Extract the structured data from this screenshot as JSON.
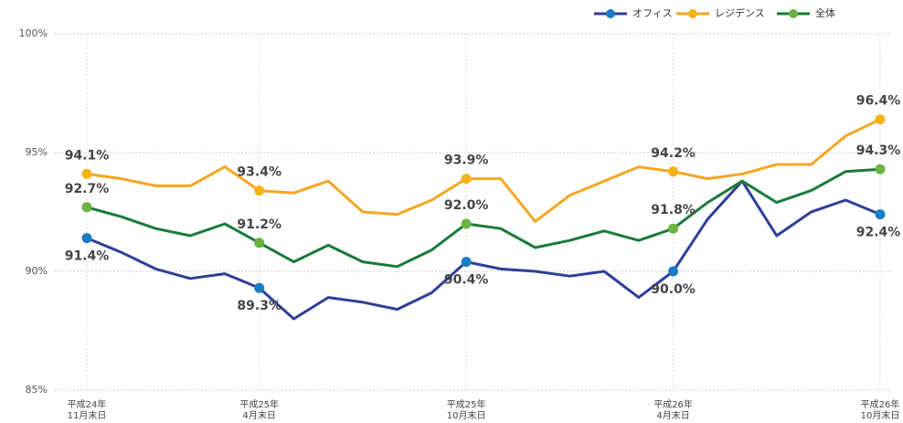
{
  "chart_data": {
    "type": "line",
    "categories": [
      [
        "平成24年",
        "11月末日"
      ],
      null,
      null,
      null,
      null,
      [
        "平成25年",
        "4月末日"
      ],
      null,
      null,
      null,
      null,
      null,
      [
        "平成25年",
        "10月末日"
      ],
      null,
      null,
      null,
      null,
      null,
      [
        "平成26年",
        "4月末日"
      ],
      null,
      null,
      null,
      null,
      null,
      [
        "平成26年",
        "10月末日"
      ]
    ],
    "series": [
      {
        "name": "オフィス",
        "color": "#2f3f97",
        "marker_color": "#1a7cc4",
        "values": [
          91.4,
          90.8,
          90.1,
          89.7,
          89.9,
          89.3,
          88.0,
          88.9,
          88.7,
          88.4,
          89.1,
          90.4,
          90.1,
          90.0,
          89.8,
          90.0,
          88.9,
          90.0,
          92.2,
          93.8,
          91.5,
          92.5,
          93.0,
          92.4
        ],
        "value_labels": [
          "91.4%",
          null,
          null,
          null,
          null,
          "89.3%",
          null,
          null,
          null,
          null,
          null,
          "90.4%",
          null,
          null,
          null,
          null,
          null,
          "90.0%",
          null,
          null,
          null,
          null,
          null,
          "92.4%"
        ]
      },
      {
        "name": "レジデンス",
        "color": "#f5a623",
        "marker_color": "#f5b316",
        "values": [
          94.1,
          93.9,
          93.6,
          93.6,
          94.4,
          93.4,
          93.3,
          93.8,
          92.5,
          92.4,
          93.0,
          93.9,
          93.9,
          92.1,
          93.2,
          93.8,
          94.4,
          94.2,
          93.9,
          94.1,
          94.5,
          94.5,
          95.7,
          96.4
        ],
        "value_labels": [
          "94.1%",
          null,
          null,
          null,
          null,
          "93.4%",
          null,
          null,
          null,
          null,
          null,
          "93.9%",
          null,
          null,
          null,
          null,
          null,
          "94.2%",
          null,
          null,
          null,
          null,
          null,
          "96.4%"
        ]
      },
      {
        "name": "全体",
        "color": "#1a7a3a",
        "marker_color": "#6cb33f",
        "values": [
          92.7,
          92.3,
          91.8,
          91.5,
          92.0,
          91.2,
          90.4,
          91.1,
          90.4,
          90.2,
          90.9,
          92.0,
          91.8,
          91.0,
          91.3,
          91.7,
          91.3,
          91.8,
          92.9,
          93.8,
          92.9,
          93.4,
          94.2,
          94.3
        ],
        "value_labels": [
          "92.7%",
          null,
          null,
          null,
          null,
          "91.2%",
          null,
          null,
          null,
          null,
          null,
          "92.0%",
          null,
          null,
          null,
          null,
          null,
          "91.8%",
          null,
          null,
          null,
          null,
          null,
          "94.3%"
        ]
      }
    ],
    "ylim": [
      85,
      100
    ],
    "yticks": [
      {
        "value": 85,
        "label": "85%"
      },
      {
        "value": 90,
        "label": "90%"
      },
      {
        "value": 95,
        "label": "95%"
      },
      {
        "value": 100,
        "label": "100%"
      }
    ],
    "grid": true,
    "legend": "top-right"
  }
}
